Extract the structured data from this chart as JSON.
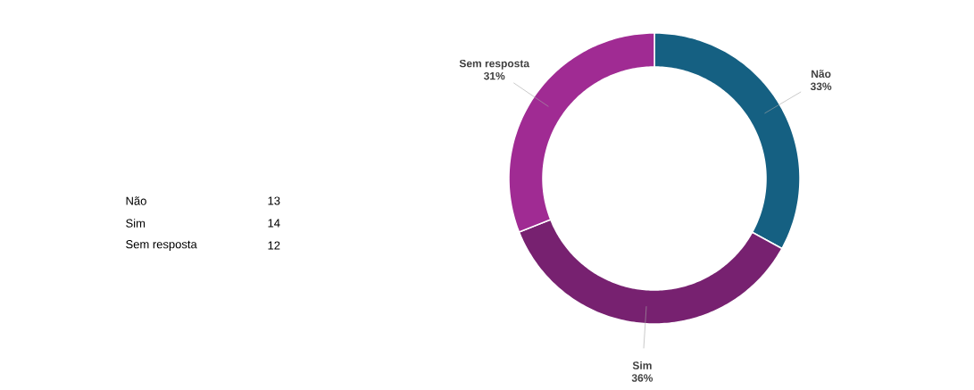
{
  "chart_data": [
    {
      "type": "other",
      "categories": [
        "Não",
        "Sim",
        "Sem resposta"
      ],
      "values": [
        13,
        14,
        12
      ],
      "data_labels": true
    },
    {
      "type": "donut",
      "categories": [
        "Não",
        "Sim",
        "Sem resposta"
      ],
      "values": [
        33,
        36,
        31
      ],
      "colors": [
        "#156082",
        "#772170",
        "#a02b93"
      ],
      "value_labels": [
        "33%",
        "36%",
        "31%"
      ]
    }
  ]
}
